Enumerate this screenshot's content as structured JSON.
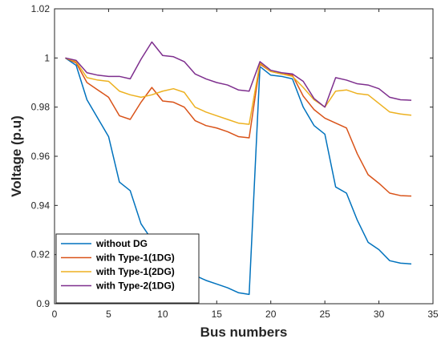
{
  "chart_data": {
    "type": "line",
    "xlabel": "Bus numbers",
    "ylabel": "Voltage (p.u)",
    "xlim": [
      0,
      35
    ],
    "ylim": [
      0.9,
      1.02
    ],
    "xticks": [
      0,
      5,
      10,
      15,
      20,
      25,
      30,
      35
    ],
    "yticks": [
      0.9,
      0.92,
      0.94,
      0.96,
      0.98,
      1,
      1.02
    ],
    "xtick_labels": [
      "0",
      "5",
      "10",
      "15",
      "20",
      "25",
      "30",
      "35"
    ],
    "ytick_labels": [
      "0.9",
      "0.92",
      "0.94",
      "0.96",
      "0.98",
      "1",
      "1.02"
    ],
    "grid": false,
    "legend_position": "bottom-left",
    "x": [
      1,
      2,
      3,
      4,
      5,
      6,
      7,
      8,
      9,
      10,
      11,
      12,
      13,
      14,
      15,
      16,
      17,
      18,
      19,
      20,
      21,
      22,
      23,
      24,
      25,
      26,
      27,
      28,
      29,
      30,
      31,
      32,
      33
    ],
    "series": [
      {
        "name": "without DG",
        "color": "#0072BD",
        "values": [
          1.0,
          0.997,
          0.983,
          0.9755,
          0.968,
          0.9495,
          0.946,
          0.9325,
          0.926,
          0.9225,
          0.919,
          0.9135,
          0.9115,
          0.9095,
          0.908,
          0.9065,
          0.9045,
          0.9038,
          0.9965,
          0.993,
          0.9925,
          0.9915,
          0.98,
          0.9725,
          0.969,
          0.9475,
          0.945,
          0.934,
          0.925,
          0.922,
          0.9175,
          0.9165,
          0.9162
        ]
      },
      {
        "name": "with Type-1(1DG)",
        "color": "#D95319",
        "values": [
          1.0,
          0.998,
          0.99,
          0.987,
          0.984,
          0.9765,
          0.975,
          0.982,
          0.988,
          0.9825,
          0.982,
          0.98,
          0.9745,
          0.9725,
          0.9715,
          0.97,
          0.968,
          0.9675,
          0.9975,
          0.9945,
          0.9935,
          0.993,
          0.9845,
          0.979,
          0.9755,
          0.9735,
          0.9715,
          0.961,
          0.9525,
          0.949,
          0.945,
          0.944,
          0.9438
        ]
      },
      {
        "name": "with Type-1(2DG)",
        "color": "#EDB120",
        "values": [
          1.0,
          0.9985,
          0.992,
          0.991,
          0.9905,
          0.9865,
          0.985,
          0.984,
          0.985,
          0.9865,
          0.9875,
          0.986,
          0.98,
          0.978,
          0.9765,
          0.975,
          0.9735,
          0.973,
          0.998,
          0.9945,
          0.9935,
          0.9925,
          0.988,
          0.983,
          0.98,
          0.9865,
          0.987,
          0.9855,
          0.985,
          0.9815,
          0.978,
          0.9772,
          0.9767
        ]
      },
      {
        "name": "with Type-2(1DG)",
        "color": "#7E2F8E",
        "values": [
          1.0,
          0.999,
          0.994,
          0.993,
          0.9925,
          0.9925,
          0.9915,
          0.9995,
          1.0065,
          1.001,
          1.0005,
          0.9985,
          0.9935,
          0.9915,
          0.99,
          0.989,
          0.987,
          0.9865,
          0.9985,
          0.995,
          0.994,
          0.9935,
          0.9905,
          0.9835,
          0.98,
          0.992,
          0.991,
          0.9895,
          0.989,
          0.9875,
          0.984,
          0.983,
          0.9828
        ]
      }
    ]
  }
}
